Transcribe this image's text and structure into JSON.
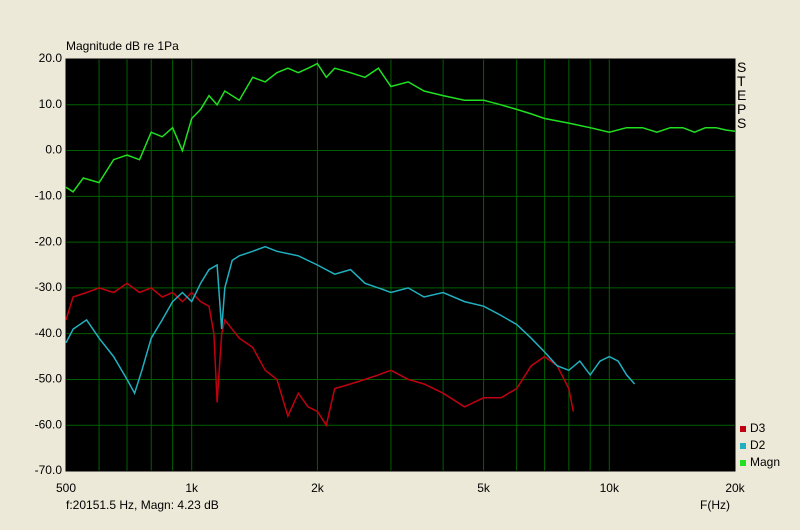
{
  "chart_data": {
    "type": "line",
    "y_label": "Magnitude dB re 1Pa",
    "x_label": "F(Hz)",
    "side_label": "STEPS",
    "cursor_readout": "f:20151.5 Hz, Magn: 4.23 dB",
    "log_x": true,
    "grid": true,
    "legend": "bottom-right",
    "xlim": [
      500,
      20000
    ],
    "ylim": [
      -70,
      20
    ],
    "xticks": [
      500,
      {
        "value": 1000,
        "label": "1k"
      },
      {
        "value": 2000,
        "label": "2k"
      },
      {
        "value": 5000,
        "label": "5k"
      },
      {
        "value": 10000,
        "label": "10k"
      },
      {
        "value": 20000,
        "label": "20k"
      }
    ],
    "x_minor_grid": [
      600,
      700,
      800,
      900,
      3000,
      4000,
      6000,
      7000,
      8000,
      9000
    ],
    "yticks": [
      {
        "value": 20,
        "label": "20.0"
      },
      {
        "value": 10,
        "label": "10.0"
      },
      {
        "value": 0,
        "label": "0.0"
      },
      {
        "value": -10,
        "label": "-10.0"
      },
      {
        "value": -20,
        "label": "-20.0"
      },
      {
        "value": -30,
        "label": "-30.0"
      },
      {
        "value": -40,
        "label": "-40.0"
      },
      {
        "value": -50,
        "label": "-50.0"
      },
      {
        "value": -60,
        "label": "-60.0"
      },
      {
        "value": -70,
        "label": "-70.0"
      }
    ],
    "series": [
      {
        "name": "D3",
        "color": "#c00010",
        "x": [
          500,
          520,
          560,
          600,
          650,
          700,
          750,
          800,
          850,
          900,
          950,
          1000,
          1050,
          1100,
          1130,
          1150,
          1180,
          1200,
          1300,
          1400,
          1500,
          1600,
          1700,
          1800,
          1900,
          2000,
          2100,
          2200,
          2400,
          2600,
          2800,
          3000,
          3300,
          3600,
          4000,
          4500,
          5000,
          5500,
          6000,
          6500,
          7000,
          7500,
          8000,
          8200
        ],
        "values": [
          -37,
          -32,
          -31,
          -30,
          -31,
          -29,
          -31,
          -30,
          -32,
          -31,
          -33,
          -31,
          -33,
          -34,
          -40,
          -55,
          -40,
          -37,
          -41,
          -43,
          -48,
          -50,
          -58,
          -53,
          -56,
          -57,
          -60,
          -52,
          -51,
          -50,
          -49,
          -48,
          -50,
          -51,
          -53,
          -56,
          -54,
          -54,
          -52,
          -47,
          -45,
          -47,
          -52,
          -57
        ]
      },
      {
        "name": "D2",
        "color": "#20b0c0",
        "x": [
          500,
          520,
          560,
          600,
          650,
          700,
          730,
          760,
          800,
          850,
          900,
          950,
          1000,
          1050,
          1100,
          1150,
          1180,
          1200,
          1250,
          1300,
          1400,
          1500,
          1600,
          1800,
          2000,
          2200,
          2400,
          2600,
          2800,
          3000,
          3300,
          3600,
          4000,
          4500,
          5000,
          5500,
          6000,
          6500,
          7000,
          7500,
          8000,
          8500,
          9000,
          9500,
          10000,
          10500,
          11000,
          11500
        ],
        "values": [
          -42,
          -39,
          -37,
          -41,
          -45,
          -50,
          -53,
          -48,
          -41,
          -37,
          -33,
          -31,
          -33,
          -29,
          -26,
          -25,
          -39,
          -30,
          -24,
          -23,
          -22,
          -21,
          -22,
          -23,
          -25,
          -27,
          -26,
          -29,
          -30,
          -31,
          -30,
          -32,
          -31,
          -33,
          -34,
          -36,
          -38,
          -41,
          -44,
          -47,
          -48,
          -46,
          -49,
          -46,
          -45,
          -46,
          -49,
          -51
        ]
      },
      {
        "name": "Magn",
        "color": "#20e020",
        "x": [
          500,
          520,
          550,
          600,
          650,
          700,
          750,
          800,
          850,
          900,
          950,
          1000,
          1050,
          1100,
          1150,
          1200,
          1300,
          1400,
          1500,
          1600,
          1700,
          1800,
          1900,
          2000,
          2100,
          2200,
          2400,
          2600,
          2800,
          3000,
          3300,
          3600,
          4000,
          4500,
          5000,
          5500,
          6000,
          6500,
          7000,
          8000,
          9000,
          10000,
          11000,
          12000,
          13000,
          14000,
          15000,
          16000,
          17000,
          18000,
          19000,
          20000
        ],
        "values": [
          -8,
          -9,
          -6,
          -7,
          -2,
          -1,
          -2,
          4,
          3,
          5,
          0,
          7,
          9,
          12,
          10,
          13,
          11,
          16,
          15,
          17,
          18,
          17,
          18,
          19,
          16,
          18,
          17,
          16,
          18,
          14,
          15,
          13,
          12,
          11,
          11,
          10,
          9,
          8,
          7,
          6,
          5,
          4,
          5,
          5,
          4,
          5,
          5,
          4,
          5,
          5,
          4.5,
          4.23
        ]
      }
    ]
  }
}
